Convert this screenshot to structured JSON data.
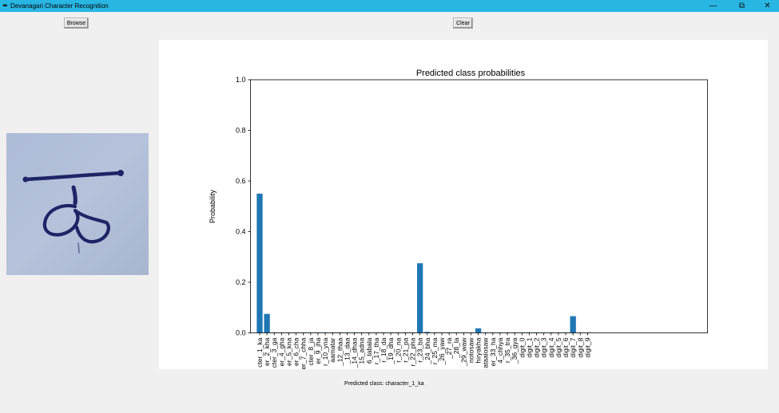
{
  "window": {
    "title": "Devanagari Character Recognition",
    "icon": "feather-icon",
    "controls": {
      "minimize": "—",
      "restore": "⧉",
      "close": "✕"
    }
  },
  "toolbar": {
    "browse_label": "Browse",
    "clear_label": "Clear"
  },
  "status": {
    "predicted_text": "Predicted class: character_1_ka"
  },
  "chart_data": {
    "type": "bar",
    "title": "Predicted class probabilities",
    "xlabel": "",
    "ylabel": "Probability",
    "ylim": [
      0,
      1.0
    ],
    "yticks": [
      "0.0",
      "0.2",
      "0.4",
      "0.6",
      "0.8",
      "1.0"
    ],
    "bar_color": "#1f77b4",
    "grid": false,
    "categories": [
      "cter_1_ka",
      "er_2_kha",
      "cter_3_ga",
      "er_4_gha",
      "er_5_kna",
      "er_6_cha",
      "er_7_chha",
      "cter_8_ja",
      "er_9_jha",
      "r_10_yna",
      "aamatar",
      "_12_thaa",
      "_13_daa",
      "_14_dhaa",
      "15_adna",
      "6_tabala",
      "r_17_tha",
      "r_18_da",
      "_19_dha",
      "r_20_na",
      "r_21_pa",
      "r_22_pha",
      "r_23_ba",
      "_24_bha",
      "r_25_ma",
      "_26_yaw",
      "_27_ra",
      "_28_la",
      "_29_waw",
      "notosaw",
      "hiryakha",
      "ataalosaw",
      "er_33_ha",
      "4_chhya",
      "r_35_tra",
      "_36_gya",
      "digit_0",
      "digit_1",
      "digit_2",
      "digit_3",
      "digit_4",
      "digit_5",
      "digit_6",
      "digit_7",
      "digit_8",
      "digit_9"
    ],
    "values": [
      0.55,
      0.075,
      0.002,
      0.002,
      0.002,
      0.002,
      0.002,
      0.002,
      0.002,
      0.002,
      0.002,
      0.002,
      0.002,
      0.002,
      0.002,
      0.002,
      0.002,
      0.002,
      0.002,
      0.002,
      0.002,
      0.002,
      0.275,
      0.004,
      0.002,
      0.002,
      0.002,
      0.002,
      0.002,
      0.002,
      0.018,
      0.002,
      0.002,
      0.002,
      0.002,
      0.002,
      0.002,
      0.002,
      0.002,
      0.002,
      0.002,
      0.002,
      0.002,
      0.066,
      0.002,
      0.002
    ]
  }
}
